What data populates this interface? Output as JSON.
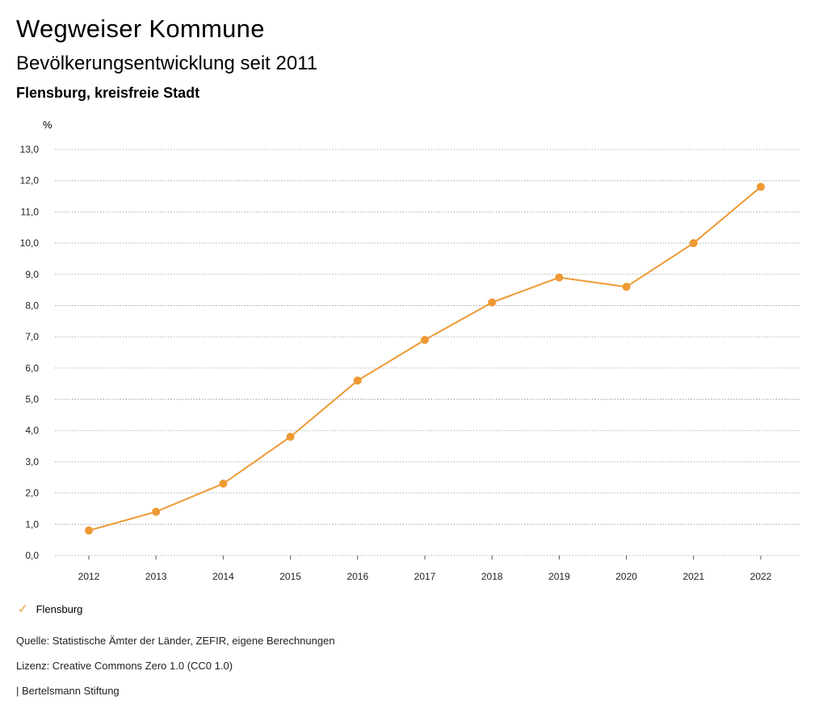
{
  "header": {
    "title": "Wegweiser Kommune",
    "subtitle": "Bevölkerungsentwicklung seit 2011",
    "region": "Flensburg, kreisfreie Stadt"
  },
  "chart_data": {
    "type": "line",
    "ylabel": "%",
    "ylim": [
      0,
      13
    ],
    "yticks": [
      "0,0",
      "1,0",
      "2,0",
      "3,0",
      "4,0",
      "5,0",
      "6,0",
      "7,0",
      "8,0",
      "9,0",
      "10,0",
      "11,0",
      "12,0",
      "13,0"
    ],
    "x": [
      "2012",
      "2013",
      "2014",
      "2015",
      "2016",
      "2017",
      "2018",
      "2019",
      "2020",
      "2021",
      "2022"
    ],
    "series": [
      {
        "name": "Flensburg",
        "color": "#ee9933",
        "values": [
          0.8,
          1.4,
          2.3,
          3.8,
          5.6,
          6.9,
          8.1,
          8.9,
          8.6,
          10.0,
          11.8
        ]
      }
    ],
    "grid": true,
    "legend": "bottom-left"
  },
  "legend": {
    "label": "Flensburg",
    "icon": "check-icon"
  },
  "footer": {
    "source": "Quelle: Statistische Ämter der Länder, ZEFIR, eigene Berechnungen",
    "license": "Lizenz: Creative Commons Zero 1.0 (CC0 1.0)",
    "publisher": "| Bertelsmann Stiftung"
  }
}
